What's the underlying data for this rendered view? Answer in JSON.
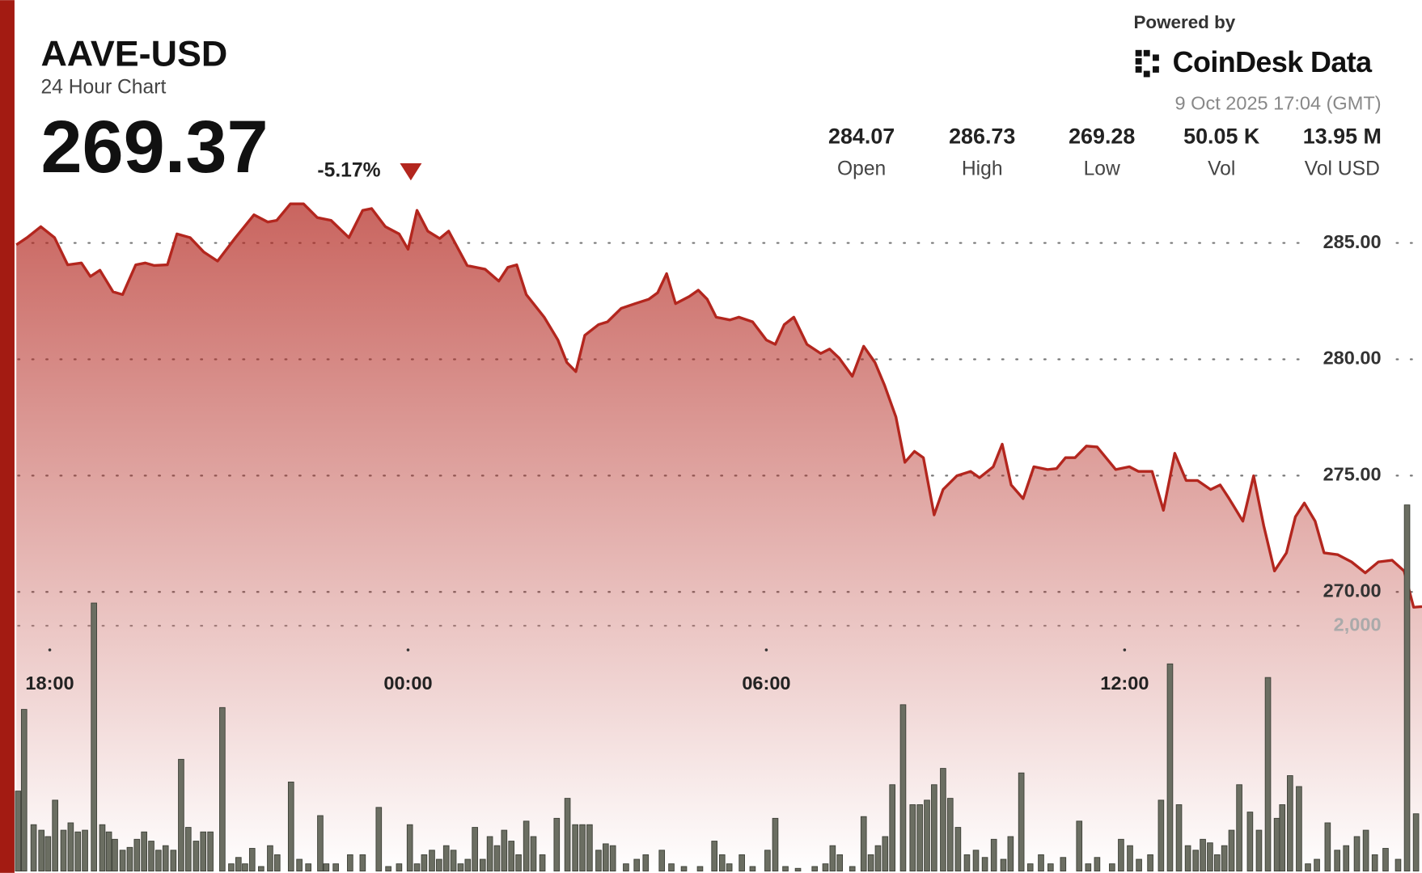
{
  "header": {
    "symbol": "AAVE-USD",
    "subtitle": "24 Hour Chart",
    "price": "269.37",
    "change": "-5.17%",
    "powered_by": "Powered by",
    "brand": "CoinDesk Data",
    "timestamp": "9 Oct 2025 17:04 (GMT)",
    "stats": [
      {
        "value": "284.07",
        "label": "Open"
      },
      {
        "value": "286.73",
        "label": "High"
      },
      {
        "value": "269.28",
        "label": "Low"
      },
      {
        "value": "50.05 K",
        "label": "Vol"
      },
      {
        "value": "13.95 M",
        "label": "Vol USD"
      }
    ]
  },
  "chart_data": {
    "type": "area",
    "xlim": [
      -0.56,
      22.98
    ],
    "xticks": [
      {
        "value": 0,
        "label": "18:00"
      },
      {
        "value": 6,
        "label": "00:00"
      },
      {
        "value": 12,
        "label": "06:00"
      },
      {
        "value": 18,
        "label": "12:00"
      }
    ],
    "ylim": [
      258,
      287
    ],
    "yticks": [
      {
        "value": 270,
        "label": "270.00"
      },
      {
        "value": 275,
        "label": "275.00"
      },
      {
        "value": 280,
        "label": "280.00"
      },
      {
        "value": 285,
        "label": "285.00"
      }
    ],
    "y2lim": [
      0,
      5500
    ],
    "y2ticks": [
      {
        "value": 2000,
        "label": "2,000"
      }
    ],
    "grid": true,
    "price": {
      "color": "#b3261e",
      "x": [
        -0.56,
        -0.38,
        -0.15,
        0.08,
        0.3,
        0.53,
        0.68,
        0.84,
        1.06,
        1.22,
        1.44,
        1.6,
        1.75,
        1.97,
        2.13,
        2.35,
        2.58,
        2.81,
        3.11,
        3.42,
        3.65,
        3.8,
        4.03,
        4.25,
        4.48,
        4.71,
        5.01,
        5.24,
        5.39,
        5.62,
        5.85,
        6.0,
        6.15,
        6.33,
        6.53,
        6.68,
        6.99,
        7.29,
        7.52,
        7.67,
        7.82,
        7.98,
        8.28,
        8.51,
        8.66,
        8.81,
        8.96,
        9.19,
        9.34,
        9.57,
        9.8,
        10.03,
        10.18,
        10.33,
        10.48,
        10.71,
        10.86,
        11.01,
        11.16,
        11.39,
        11.54,
        11.77,
        12.0,
        12.15,
        12.3,
        12.46,
        12.68,
        12.91,
        13.06,
        13.22,
        13.44,
        13.63,
        13.82,
        13.98,
        14.17,
        14.32,
        14.48,
        14.63,
        14.81,
        14.96,
        15.19,
        15.42,
        15.57,
        15.8,
        15.95,
        16.1,
        16.3,
        16.48,
        16.71,
        16.86,
        17.01,
        17.17,
        17.36,
        17.54,
        17.85,
        18.08,
        18.23,
        18.46,
        18.65,
        18.84,
        19.03,
        19.22,
        19.44,
        19.6,
        19.75,
        19.98,
        20.16,
        20.33,
        20.51,
        20.71,
        20.86,
        21.01,
        21.19,
        21.34,
        21.57,
        21.8,
        22.03,
        22.25,
        22.48,
        22.68,
        22.84,
        22.98
      ],
      "values": [
        284.92,
        285.23,
        285.7,
        285.23,
        284.06,
        284.14,
        283.56,
        283.83,
        282.9,
        282.78,
        284.06,
        284.14,
        284.03,
        284.06,
        285.39,
        285.23,
        284.61,
        284.22,
        285.23,
        286.21,
        285.9,
        285.97,
        286.68,
        286.68,
        286.09,
        285.97,
        285.23,
        286.4,
        286.48,
        285.7,
        285.39,
        284.73,
        286.4,
        285.51,
        285.19,
        285.51,
        284.03,
        283.87,
        283.36,
        283.95,
        284.06,
        282.78,
        281.81,
        280.83,
        279.86,
        279.47,
        281.03,
        281.49,
        281.61,
        282.19,
        282.39,
        282.58,
        282.86,
        283.68,
        282.39,
        282.7,
        282.97,
        282.58,
        281.81,
        281.69,
        281.81,
        281.61,
        280.83,
        280.64,
        281.49,
        281.81,
        280.64,
        280.25,
        280.44,
        280.05,
        279.27,
        280.56,
        279.86,
        278.88,
        277.52,
        275.57,
        276.04,
        275.77,
        273.31,
        274.4,
        274.99,
        275.18,
        274.91,
        275.38,
        276.35,
        274.6,
        274.01,
        275.38,
        275.26,
        275.3,
        275.77,
        275.77,
        276.27,
        276.23,
        275.26,
        275.38,
        275.18,
        275.18,
        273.51,
        275.96,
        274.79,
        274.79,
        274.4,
        274.6,
        274.01,
        273.04,
        274.99,
        272.84,
        270.9,
        271.68,
        273.23,
        273.82,
        273.04,
        271.68,
        271.6,
        271.29,
        270.82,
        271.29,
        271.36,
        270.9,
        269.34,
        269.37
      ]
    },
    "volume": {
      "type": "bar",
      "axis": "y2",
      "color": "#6b6e62",
      "x": [
        -0.53,
        -0.43,
        -0.27,
        -0.14,
        -0.03,
        0.09,
        0.23,
        0.35,
        0.47,
        0.59,
        0.74,
        0.88,
        0.99,
        1.09,
        1.22,
        1.34,
        1.46,
        1.58,
        1.7,
        1.82,
        1.94,
        2.07,
        2.2,
        2.32,
        2.45,
        2.57,
        2.69,
        2.89,
        3.04,
        3.16,
        3.27,
        3.39,
        3.54,
        3.69,
        3.81,
        4.04,
        4.18,
        4.33,
        4.53,
        4.63,
        4.79,
        5.03,
        5.24,
        5.51,
        5.67,
        5.85,
        6.03,
        6.15,
        6.27,
        6.4,
        6.52,
        6.64,
        6.76,
        6.88,
        7.0,
        7.12,
        7.25,
        7.37,
        7.49,
        7.61,
        7.73,
        7.85,
        7.98,
        8.1,
        8.25,
        8.49,
        8.67,
        8.8,
        8.92,
        9.04,
        9.19,
        9.31,
        9.43,
        9.65,
        9.83,
        9.98,
        10.25,
        10.41,
        10.62,
        10.89,
        11.13,
        11.26,
        11.38,
        11.59,
        11.77,
        12.02,
        12.15,
        12.32,
        12.53,
        12.81,
        12.99,
        13.11,
        13.23,
        13.44,
        13.63,
        13.75,
        13.87,
        13.99,
        14.11,
        14.29,
        14.45,
        14.57,
        14.69,
        14.81,
        14.96,
        15.08,
        15.21,
        15.36,
        15.51,
        15.66,
        15.81,
        15.97,
        16.09,
        16.27,
        16.42,
        16.6,
        16.76,
        16.97,
        17.24,
        17.39,
        17.54,
        17.79,
        17.94,
        18.09,
        18.24,
        18.43,
        18.61,
        18.76,
        18.91,
        19.06,
        19.19,
        19.31,
        19.43,
        19.55,
        19.67,
        19.79,
        19.92,
        20.1,
        20.25,
        20.4,
        20.55,
        20.64,
        20.77,
        20.92,
        21.07,
        21.22,
        21.4,
        21.56,
        21.71,
        21.89,
        22.04,
        22.19,
        22.37,
        22.58,
        22.73,
        22.88
      ],
      "values": [
        652,
        1318,
        378,
        333,
        281,
        578,
        333,
        393,
        319,
        333,
        2185,
        378,
        319,
        259,
        170,
        193,
        259,
        319,
        244,
        170,
        207,
        170,
        911,
        356,
        244,
        319,
        319,
        1333,
        59,
        111,
        59,
        185,
        37,
        207,
        133,
        726,
        96,
        59,
        452,
        59,
        59,
        133,
        133,
        519,
        37,
        59,
        378,
        59,
        133,
        170,
        96,
        207,
        170,
        59,
        96,
        356,
        96,
        281,
        207,
        333,
        244,
        133,
        407,
        281,
        133,
        430,
        593,
        378,
        378,
        378,
        170,
        222,
        207,
        59,
        96,
        133,
        170,
        59,
        37,
        37,
        244,
        133,
        59,
        133,
        37,
        170,
        430,
        37,
        22,
        37,
        59,
        207,
        133,
        37,
        444,
        133,
        207,
        281,
        704,
        1356,
        541,
        541,
        578,
        704,
        837,
        593,
        356,
        133,
        170,
        111,
        259,
        96,
        281,
        800,
        59,
        133,
        59,
        111,
        407,
        59,
        111,
        59,
        259,
        207,
        96,
        133,
        578,
        1689,
        541,
        207,
        170,
        259,
        230,
        133,
        207,
        333,
        704,
        481,
        333,
        1578,
        430,
        541,
        778,
        689,
        59,
        96,
        393,
        170,
        207,
        281,
        333,
        133,
        185,
        96,
        2985,
        467
      ]
    }
  }
}
